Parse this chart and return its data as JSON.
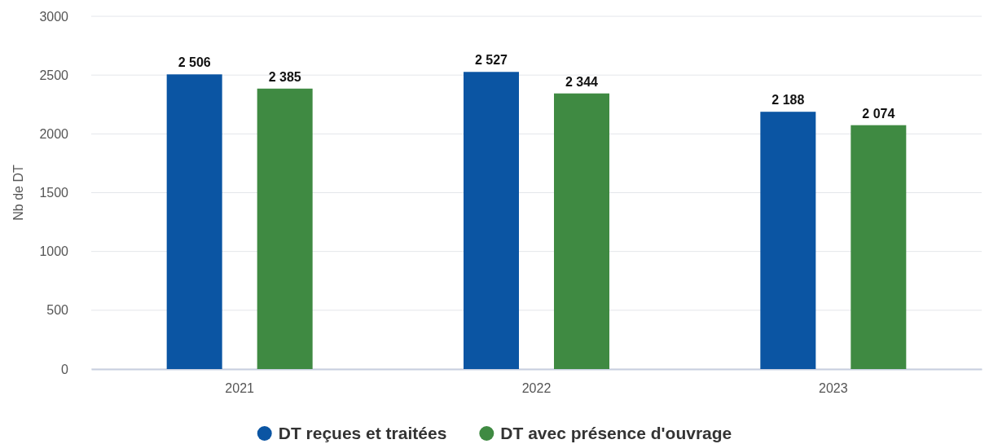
{
  "chart_data": {
    "type": "bar",
    "ylabel": "Nb de DT",
    "categories": [
      "2021",
      "2022",
      "2023"
    ],
    "series": [
      {
        "name": "DT reçues et traitées",
        "color": "#0b55a3",
        "values": [
          2506,
          2527,
          2188
        ],
        "value_labels": [
          "2 506",
          "2 527",
          "2 188"
        ]
      },
      {
        "name": "DT avec présence d'ouvrage",
        "color": "#3f8a42",
        "values": [
          2385,
          2344,
          2074
        ],
        "value_labels": [
          "2 385",
          "2 344",
          "2 074"
        ]
      }
    ],
    "ylim": [
      0,
      3000
    ],
    "yticks": [
      0,
      500,
      1000,
      1500,
      2000,
      2500,
      3000
    ],
    "grid": "y",
    "legend": "bottom"
  }
}
